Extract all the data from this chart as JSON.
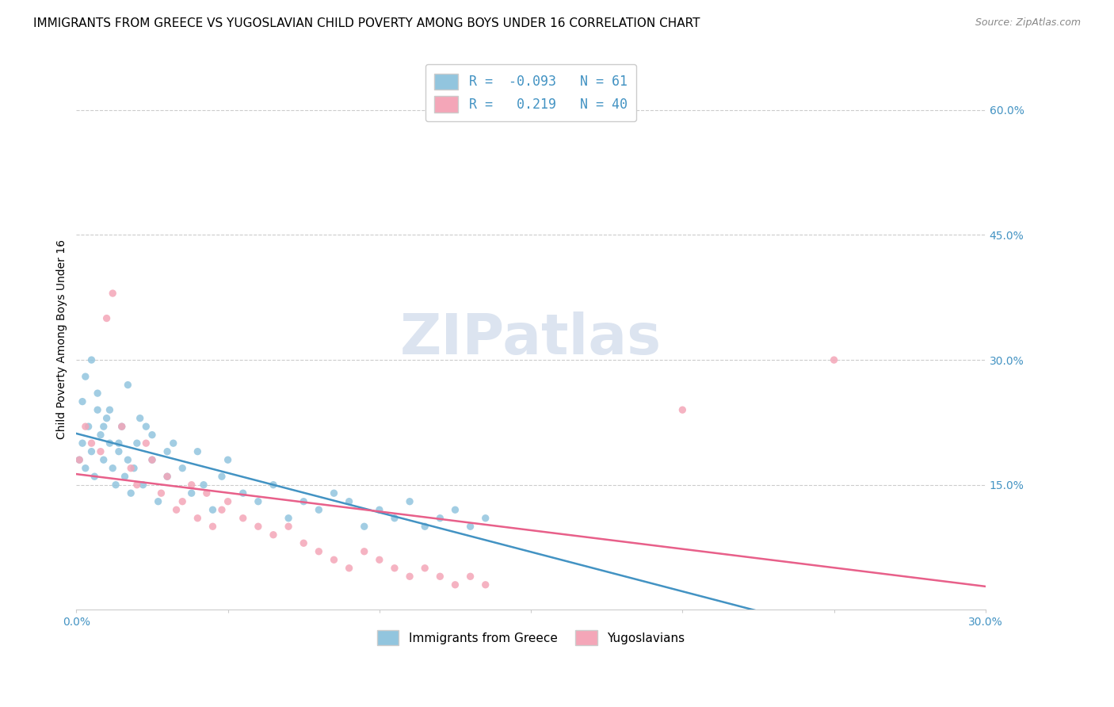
{
  "title": "IMMIGRANTS FROM GREECE VS YUGOSLAVIAN CHILD POVERTY AMONG BOYS UNDER 16 CORRELATION CHART",
  "source": "Source: ZipAtlas.com",
  "ylabel": "Child Poverty Among Boys Under 16",
  "xlim": [
    0.0,
    0.3
  ],
  "ylim": [
    0.0,
    0.65
  ],
  "xticks": [
    0.0,
    0.05,
    0.1,
    0.15,
    0.2,
    0.25,
    0.3
  ],
  "xtick_labels": [
    "0.0%",
    "",
    "",
    "",
    "",
    "",
    "30.0%"
  ],
  "ytick_labels_right": [
    "60.0%",
    "45.0%",
    "30.0%",
    "15.0%"
  ],
  "ytick_positions_right": [
    0.6,
    0.45,
    0.3,
    0.15
  ],
  "grid_color": "#cccccc",
  "background_color": "#ffffff",
  "watermark_text": "ZIPatlas",
  "watermark_color": "#dce4f0",
  "title_fontsize": 11,
  "axis_label_fontsize": 10,
  "tick_fontsize": 10,
  "watermark_fontsize": 52,
  "series": [
    {
      "name": "Immigrants from Greece",
      "color": "#92c5de",
      "R": -0.093,
      "N": 61,
      "trend_color": "#4393c3",
      "x": [
        0.001,
        0.002,
        0.003,
        0.004,
        0.005,
        0.006,
        0.007,
        0.008,
        0.009,
        0.01,
        0.011,
        0.012,
        0.013,
        0.014,
        0.015,
        0.016,
        0.017,
        0.018,
        0.019,
        0.02,
        0.022,
        0.023,
        0.025,
        0.027,
        0.03,
        0.032,
        0.035,
        0.038,
        0.04,
        0.042,
        0.045,
        0.048,
        0.05,
        0.055,
        0.06,
        0.065,
        0.07,
        0.075,
        0.08,
        0.085,
        0.09,
        0.095,
        0.1,
        0.105,
        0.11,
        0.115,
        0.12,
        0.125,
        0.13,
        0.135,
        0.002,
        0.003,
        0.005,
        0.007,
        0.009,
        0.011,
        0.014,
        0.017,
        0.021,
        0.025,
        0.03
      ],
      "y": [
        0.18,
        0.2,
        0.17,
        0.22,
        0.19,
        0.16,
        0.24,
        0.21,
        0.18,
        0.23,
        0.2,
        0.17,
        0.15,
        0.19,
        0.22,
        0.16,
        0.18,
        0.14,
        0.17,
        0.2,
        0.15,
        0.22,
        0.18,
        0.13,
        0.16,
        0.2,
        0.17,
        0.14,
        0.19,
        0.15,
        0.12,
        0.16,
        0.18,
        0.14,
        0.13,
        0.15,
        0.11,
        0.13,
        0.12,
        0.14,
        0.13,
        0.1,
        0.12,
        0.11,
        0.13,
        0.1,
        0.11,
        0.12,
        0.1,
        0.11,
        0.25,
        0.28,
        0.3,
        0.26,
        0.22,
        0.24,
        0.2,
        0.27,
        0.23,
        0.21,
        0.19
      ]
    },
    {
      "name": "Yugoslavians",
      "color": "#f4a6b8",
      "R": 0.219,
      "N": 40,
      "trend_color": "#e8608a",
      "x": [
        0.001,
        0.003,
        0.005,
        0.008,
        0.01,
        0.012,
        0.015,
        0.018,
        0.02,
        0.023,
        0.025,
        0.028,
        0.03,
        0.033,
        0.035,
        0.038,
        0.04,
        0.043,
        0.045,
        0.048,
        0.05,
        0.055,
        0.06,
        0.065,
        0.07,
        0.075,
        0.08,
        0.085,
        0.09,
        0.095,
        0.1,
        0.105,
        0.11,
        0.115,
        0.12,
        0.125,
        0.13,
        0.135,
        0.2,
        0.25
      ],
      "y": [
        0.18,
        0.22,
        0.2,
        0.19,
        0.35,
        0.38,
        0.22,
        0.17,
        0.15,
        0.2,
        0.18,
        0.14,
        0.16,
        0.12,
        0.13,
        0.15,
        0.11,
        0.14,
        0.1,
        0.12,
        0.13,
        0.11,
        0.1,
        0.09,
        0.1,
        0.08,
        0.07,
        0.06,
        0.05,
        0.07,
        0.06,
        0.05,
        0.04,
        0.05,
        0.04,
        0.03,
        0.04,
        0.03,
        0.24,
        0.3
      ]
    }
  ]
}
